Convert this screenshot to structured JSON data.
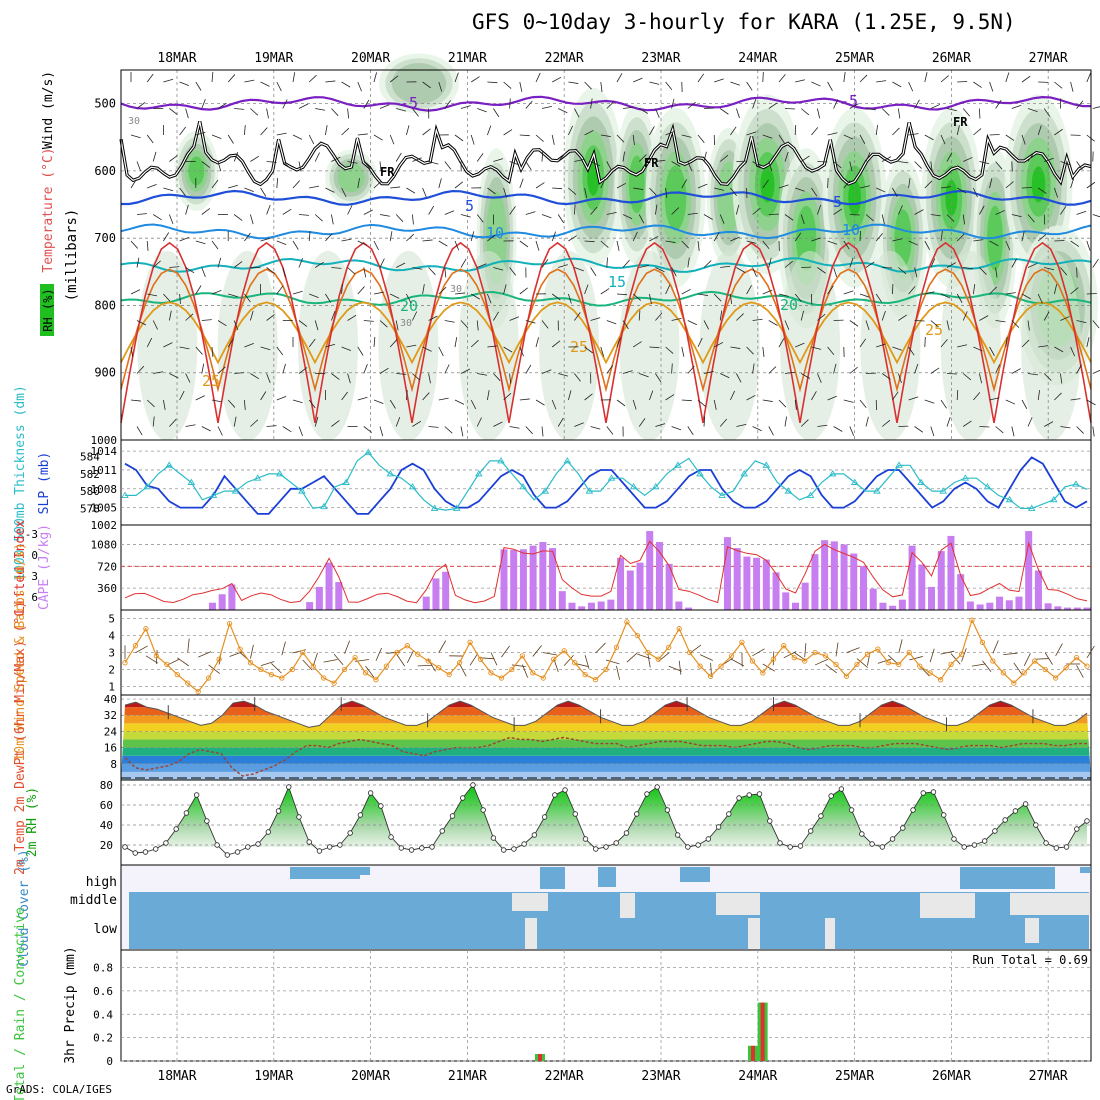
{
  "title": "GFS 0~10day 3-hourly for KARA (1.25E, 9.5N)",
  "credit": "GrADS: COLA/IGES",
  "chart_data": [
    {
      "panel": "upper-air",
      "type": "heatmap",
      "dates": [
        "18MAR",
        "19MAR",
        "20MAR",
        "21MAR",
        "22MAR",
        "23MAR",
        "24MAR",
        "25MAR",
        "26MAR",
        "27MAR"
      ],
      "ylabel": "(millibars)",
      "legend_labels": {
        "rh": "RH (%)",
        "temp": "Temperature (°C)",
        "wind": "Wind (m/s)"
      },
      "yticks": [
        500,
        600,
        700,
        800,
        900
      ],
      "ylim": [
        1000,
        450
      ],
      "isotherm_labels": [
        {
          "text": "-5"
        },
        {
          "text": "-5"
        },
        {
          "text": "5"
        },
        {
          "text": "5"
        },
        {
          "text": "10"
        },
        {
          "text": "10"
        },
        {
          "text": "15"
        },
        {
          "text": "20"
        },
        {
          "text": "20"
        },
        {
          "text": "25"
        },
        {
          "text": "25"
        },
        {
          "text": "25"
        }
      ],
      "freezing_label": "FR",
      "rh_contour_labels": [
        "30",
        "30",
        "30"
      ],
      "rh_colors": [
        "#e6f3e6",
        "#c8dcc8",
        "#a9c7a9",
        "#88d488",
        "#52c952",
        "#1fbf1f"
      ]
    },
    {
      "panel": "thickness-slp",
      "type": "line",
      "ylabel_left": "1000-500mb Thickness (dm)",
      "ylabel_right": "SLP (mb)",
      "yticks_left": [
        578,
        580,
        582,
        584
      ],
      "yticks_right": [
        1005,
        1008,
        1011,
        1014
      ],
      "corner_labels": [
        "1000",
        "1002"
      ],
      "slp_series": [
        1012,
        1011,
        1008.5,
        1008,
        1006,
        1005,
        1005,
        1005,
        1007,
        1010,
        1008,
        1006,
        1004,
        1004,
        1006,
        1008,
        1008,
        1009,
        1010,
        1008,
        1006,
        1004,
        1004,
        1006,
        1008,
        1011,
        1012,
        1011,
        1008,
        1006,
        1005,
        1005,
        1006,
        1008,
        1010,
        1011,
        1010,
        1007,
        1005,
        1005,
        1006,
        1008,
        1010,
        1011,
        1011,
        1009,
        1007,
        1005,
        1005,
        1006,
        1008,
        1010,
        1011,
        1011,
        1008,
        1006,
        1005,
        1005,
        1006,
        1008,
        1010,
        1011,
        1010,
        1007,
        1005,
        1005,
        1006,
        1008,
        1010,
        1011,
        1011,
        1009,
        1007,
        1005,
        1006,
        1008,
        1009,
        1008,
        1006,
        1005,
        1008,
        1011,
        1013,
        1012,
        1009,
        1006,
        1005,
        1006
      ],
      "thickness_series": [
        579.5,
        579.5,
        580.5,
        582,
        583,
        582,
        581,
        579,
        579.5,
        580,
        580,
        581,
        581.5,
        582,
        582,
        581,
        580,
        578,
        578.2,
        580.5,
        581,
        583.5,
        584.5,
        583,
        582,
        581.5,
        580.5,
        579,
        578,
        577.8,
        578,
        580,
        582,
        583.5,
        583.5,
        582,
        580.5,
        579,
        580,
        582,
        583.5,
        582,
        580,
        580,
        581.5,
        581.5,
        580.5,
        579.5,
        580.5,
        582,
        583,
        583.8,
        582,
        580.5,
        579.5,
        580,
        582,
        583.5,
        583,
        581,
        580,
        579,
        579.5,
        581,
        582,
        582,
        581,
        580,
        580,
        581.5,
        583,
        583,
        581,
        580,
        580,
        581,
        581.5,
        581.5,
        580.5,
        579.5,
        579,
        578,
        578,
        578.5,
        579,
        580.5,
        580.8,
        580.2
      ]
    },
    {
      "panel": "cape-li",
      "type": "bar",
      "ylabel_left": "Lifted Index",
      "ylabel_right": "CAPE (J/kg)",
      "yticks_left": [
        "-3",
        "0",
        "3",
        "6"
      ],
      "yticks_right": [
        360,
        720,
        1080
      ],
      "cape_values": [
        0,
        0,
        0,
        0,
        0,
        0,
        0,
        0,
        0,
        120,
        260,
        420,
        0,
        0,
        0,
        0,
        0,
        0,
        0,
        130,
        380,
        780,
        460,
        0,
        0,
        0,
        0,
        0,
        0,
        0,
        0,
        220,
        520,
        630,
        0,
        0,
        0,
        0,
        0,
        1000,
        990,
        1000,
        1060,
        1120,
        1020,
        310,
        120,
        60,
        120,
        140,
        170,
        860,
        650,
        780,
        1300,
        1120,
        760,
        140,
        40,
        0,
        0,
        0,
        1200,
        1020,
        880,
        860,
        830,
        620,
        290,
        120,
        450,
        920,
        1150,
        1130,
        1080,
        930,
        720,
        350,
        120,
        70,
        170,
        1060,
        750,
        380,
        970,
        1220,
        590,
        140,
        90,
        120,
        220,
        160,
        220,
        1300,
        650,
        110,
        60,
        40,
        40,
        40
      ]
    },
    {
      "panel": "wind10m",
      "type": "line",
      "ylabel": "10m Wind Speed & Barbs (m/s)",
      "yticks": [
        1,
        2,
        3,
        4,
        5
      ],
      "ylim": [
        0.5,
        5.5
      ],
      "values": [
        2.4,
        3.4,
        4.4,
        2.8,
        2.3,
        1.7,
        1.2,
        0.7,
        1.5,
        2.6,
        4.7,
        3.2,
        2.4,
        2.0,
        1.7,
        1.5,
        2.0,
        3.0,
        2.2,
        1.5,
        1.2,
        2.0,
        2.7,
        1.8,
        1.4,
        2.2,
        3.0,
        3.4,
        2.9,
        2.5,
        2.1,
        1.7,
        2.4,
        3.6,
        2.6,
        1.8,
        1.5,
        2.0,
        2.8,
        1.8,
        1.5,
        2.6,
        3.1,
        2.4,
        1.7,
        1.4,
        2.0,
        3.3,
        4.8,
        4.0,
        3.0,
        2.6,
        3.3,
        4.4,
        3.0,
        2.2,
        1.6,
        2.2,
        2.8,
        3.6,
        2.5,
        1.8,
        2.6,
        3.4,
        2.7,
        2.5,
        3.0,
        2.8,
        2.3,
        1.6,
        2.3,
        2.9,
        3.2,
        2.4,
        2.3,
        3.0,
        2.2,
        1.8,
        1.4,
        2.3,
        2.9,
        4.9,
        3.6,
        2.5,
        1.8,
        1.2,
        1.8,
        2.5,
        2.0,
        1.5,
        2.1,
        2.7,
        2.2
      ]
    },
    {
      "panel": "temp2m",
      "type": "area",
      "ylabel": "2m Temp 2m DewPt (6hr Min/Max) (°C)",
      "yticks": [
        8,
        16,
        24,
        32,
        40
      ],
      "ylim": [
        0,
        42
      ],
      "temp_max": [
        37,
        38.5,
        36,
        35,
        33,
        31,
        29,
        27,
        28,
        32,
        38,
        39,
        37,
        34,
        32,
        30,
        28,
        26,
        27,
        32,
        37,
        39,
        37,
        34,
        31,
        29,
        27,
        27,
        29,
        33,
        37,
        39,
        37,
        34,
        31,
        29,
        27,
        27,
        29,
        33,
        37,
        39,
        37,
        34,
        31,
        29,
        27,
        27,
        29,
        33,
        37,
        39,
        37,
        34,
        31,
        29,
        27,
        27,
        29,
        33,
        37,
        39,
        37,
        34,
        31,
        29,
        27,
        27,
        29,
        33,
        37,
        39,
        37,
        34,
        31,
        29,
        27,
        27,
        29,
        33,
        37,
        39,
        37,
        34,
        31,
        29,
        27,
        27,
        29,
        33
      ],
      "dewpoint": [
        11,
        6,
        5,
        6,
        7,
        9,
        13,
        15,
        14,
        13,
        6,
        2,
        3,
        5,
        7,
        10,
        14,
        17,
        17,
        16,
        18,
        19,
        20,
        19,
        18,
        17,
        14,
        13,
        12,
        14,
        15,
        16,
        16,
        16,
        17,
        19,
        21,
        20,
        20,
        19,
        20,
        21,
        20,
        19,
        18,
        18,
        18,
        16,
        17,
        18,
        19,
        19,
        19,
        18,
        17,
        17,
        17,
        16,
        17,
        18,
        19,
        19,
        18,
        16,
        15,
        16,
        17,
        17,
        17,
        16,
        16,
        17,
        18,
        18,
        18,
        17,
        16,
        15,
        16,
        17,
        17,
        17,
        16,
        17,
        18,
        18,
        18,
        17,
        17,
        18,
        18
      ]
    },
    {
      "panel": "rh2m",
      "type": "area",
      "ylabel": "2m RH (%)",
      "yticks": [
        20,
        40,
        60,
        80
      ],
      "ylim": [
        0,
        85
      ],
      "values": [
        18,
        12,
        13,
        16,
        22,
        36,
        52,
        70,
        44,
        20,
        10,
        13,
        18,
        21,
        33,
        54,
        78,
        48,
        23,
        14,
        18,
        20,
        32,
        50,
        72,
        59,
        28,
        17,
        15,
        17,
        18,
        34,
        49,
        67,
        80,
        55,
        27,
        15,
        16,
        21,
        30,
        48,
        70,
        75,
        51,
        26,
        16,
        18,
        22,
        32,
        51,
        71,
        78,
        55,
        30,
        18,
        20,
        26,
        38,
        51,
        67,
        70,
        71,
        44,
        22,
        18,
        19,
        34,
        49,
        69,
        76,
        55,
        31,
        21,
        18,
        26,
        37,
        55,
        72,
        73,
        50,
        26,
        18,
        20,
        24,
        34,
        45,
        54,
        61,
        40,
        22,
        17,
        18,
        36,
        44
      ]
    },
    {
      "panel": "cloud",
      "type": "heatmap",
      "ylabel": "Cloud Cover (%)",
      "levels": [
        "high",
        "middle",
        "low"
      ]
    },
    {
      "panel": "precip",
      "type": "bar",
      "ylabel_left": "Total / Rain / Convective",
      "ylabel_right": "3hr Precip (mm)",
      "yticks": [
        0,
        0.2,
        0.4,
        0.6,
        0.8
      ],
      "ylim": [
        0,
        0.95
      ],
      "run_total_label": "Run Total = 0.69",
      "events": [
        {
          "date_index": 3.75,
          "value": 0.06
        },
        {
          "date_index": 5.95,
          "value": 0.13
        },
        {
          "date_index": 6.05,
          "value": 0.5
        }
      ]
    }
  ]
}
